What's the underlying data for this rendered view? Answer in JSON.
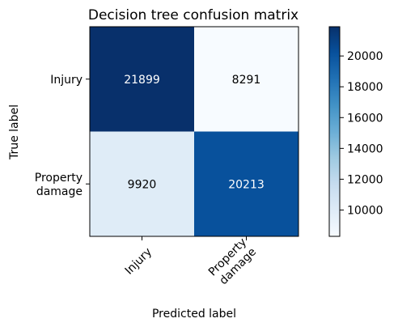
{
  "chart_data": {
    "type": "heatmap",
    "title": "Decision tree confusion matrix",
    "xlabel": "Predicted label",
    "ylabel": "True label",
    "x_categories": [
      "Injury",
      "Property\ndamage"
    ],
    "y_categories": [
      "Injury",
      "Property\ndamage"
    ],
    "values": [
      [
        21899,
        8291
      ],
      [
        9920,
        20213
      ]
    ],
    "colormap": "Blues",
    "colorbar": {
      "vmin": 8291,
      "vmax": 21899,
      "ticks": [
        10000,
        12000,
        14000,
        16000,
        18000,
        20000
      ]
    },
    "grid": false
  }
}
